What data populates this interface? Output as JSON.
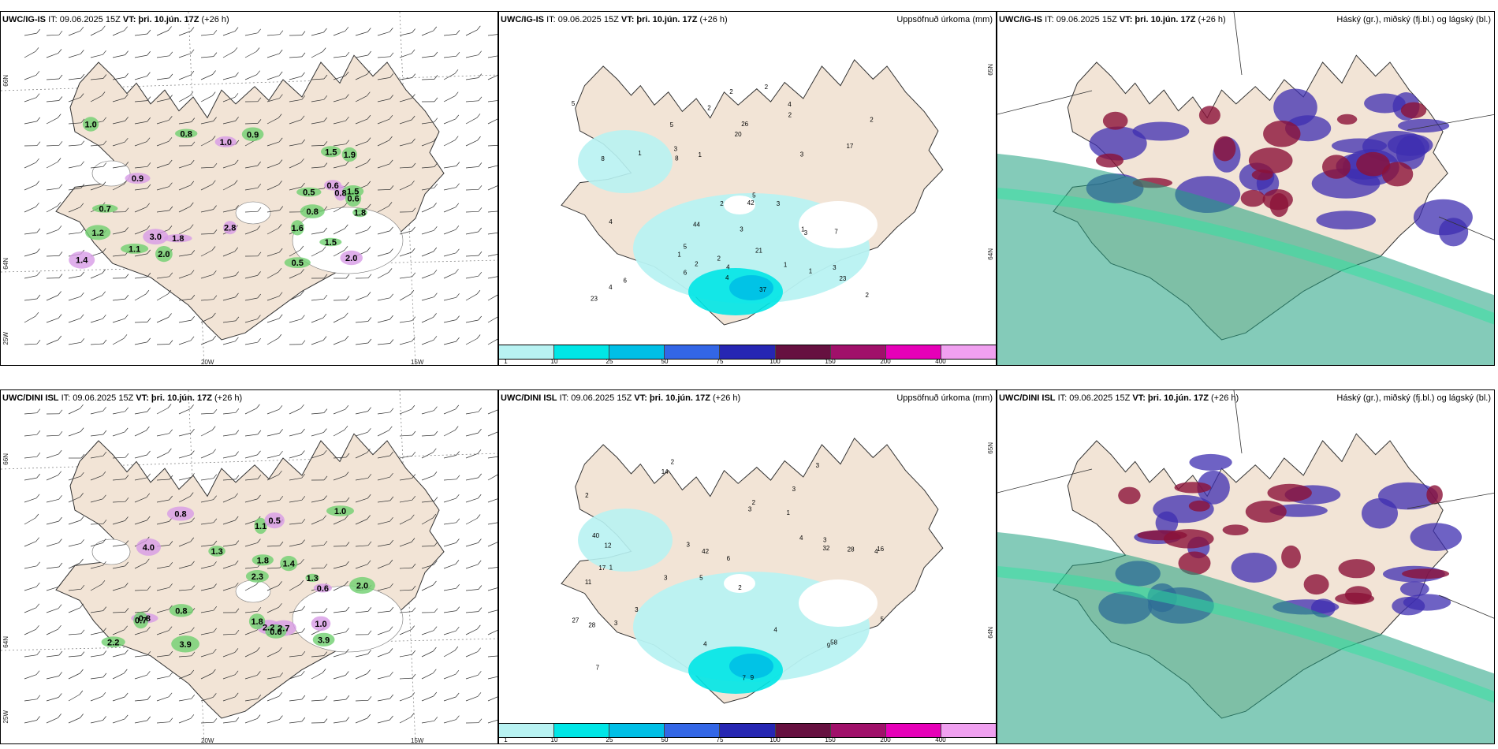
{
  "colors": {
    "land": "#f2e4d6",
    "ocean": "#ffffff",
    "coast": "#333333",
    "precip": [
      "#b8f2f2",
      "#00e6e6",
      "#00bfe6",
      "#3366e6",
      "#2626b3",
      "#661040",
      "#a0106a",
      "#e600b8",
      "#f0a0f0"
    ],
    "cloud_high": "#3d2eb0",
    "cloud_mid": "#8b1238",
    "cloud_low": "#1fa080"
  },
  "panels": [
    {
      "id": "wind-igis",
      "title_model": "UWC/IG-IS",
      "title_it": "IT: 09.06.2025 15Z",
      "title_vt": "VT: þri. 10.jún. 17Z",
      "title_lead": "(+26 h)",
      "right_label": "",
      "axis": {
        "lat_top": "66N",
        "lat_bottom": "64N",
        "lat_corner": "25W",
        "lon1": "20W",
        "lon2": "15W"
      },
      "values": [
        "0.6",
        "1.8",
        "2.0",
        "2.0",
        "0.8",
        "0.9",
        "1.0",
        "1.1",
        "1.5",
        "3.0",
        "0.7",
        "1.6",
        "0.8",
        "0.5",
        "1.5",
        "1.4",
        "0.8",
        "1.2",
        "1.8",
        "1.9",
        "1.5",
        "2.8",
        "0.5",
        "0.6",
        "0.9",
        "1.0"
      ]
    },
    {
      "id": "precip-igis",
      "title_model": "UWC/IG-IS",
      "title_it": "IT: 09.06.2025 15Z",
      "title_vt": "VT: þri. 10.jún. 17Z",
      "title_lead": "(+26 h)",
      "right_label": "Uppsöfnuð úrkoma (mm)",
      "axis": {
        "lat_top": "65N",
        "lat_bottom": "64N"
      },
      "values": [
        "4",
        "7",
        "5",
        "3",
        "2",
        "2",
        "3",
        "4",
        "1",
        "1",
        "2",
        "8",
        "2",
        "2",
        "1",
        "3",
        "1",
        "4",
        "2",
        "2",
        "5",
        "6",
        "4",
        "3",
        "3",
        "2",
        "1",
        "20",
        "17",
        "21",
        "23",
        "44",
        "26",
        "23",
        "42",
        "37",
        "4",
        "3",
        "8",
        "2",
        "1",
        "5",
        "5",
        "6"
      ],
      "colorbar": [
        "1",
        "10",
        "25",
        "50",
        "75",
        "100",
        "150",
        "200",
        "400"
      ]
    },
    {
      "id": "cloud-igis",
      "title_model": "UWC/IG-IS",
      "title_it": "IT: 09.06.2025 15Z",
      "title_vt": "VT: þri. 10.jún. 17Z",
      "title_lead": "(+26 h)",
      "right_label": "Háský (gr.), miðský (fj.bl.) og lágský (bl.)"
    },
    {
      "id": "wind-dini",
      "title_model": "UWC/DINI ISL",
      "title_it": "IT: 09.06.2025 15Z",
      "title_vt": "VT: þri. 10.jún. 17Z",
      "title_lead": "(+26 h)",
      "right_label": "",
      "axis": {
        "lat_top": "66N",
        "lat_bottom": "64N",
        "lat_corner": "25W",
        "lon1": "20W",
        "lon2": "15W"
      },
      "values": [
        "0.8",
        "2.0",
        "1.3",
        "2.2",
        "1.1",
        "1.0",
        "4.0",
        "0.8",
        "1.8",
        "2.7",
        "3.9",
        "1.8",
        "0.5",
        "1.4",
        "2.3",
        "1.0",
        "0.6",
        "0.7",
        "0.6",
        "3.9",
        "2.2",
        "0.8",
        "1.3"
      ]
    },
    {
      "id": "precip-dini",
      "title_model": "UWC/DINI ISL",
      "title_it": "IT: 09.06.2025 15Z",
      "title_vt": "VT: þri. 10.jún. 17Z",
      "title_lead": "(+26 h)",
      "right_label": "Uppsöfnuð úrkoma (mm)",
      "axis": {
        "lat_top": "65N",
        "lat_bottom": "64N"
      },
      "values": [
        "2",
        "3",
        "4",
        "5",
        "2",
        "1",
        "2",
        "1",
        "11",
        "3",
        "6",
        "7",
        "14",
        "3",
        "7",
        "9",
        "4",
        "3",
        "4",
        "3",
        "12",
        "17",
        "16",
        "28",
        "27",
        "40",
        "42",
        "32",
        "58",
        "28",
        "9",
        "2",
        "3",
        "3",
        "4",
        "5",
        "3"
      ],
      "colorbar": [
        "1",
        "10",
        "25",
        "50",
        "75",
        "100",
        "150",
        "200",
        "400"
      ]
    },
    {
      "id": "cloud-dini",
      "title_model": "UWC/DINI ISL",
      "title_it": "IT: 09.06.2025 15Z",
      "title_vt": "VT: þri. 10.jún. 17Z",
      "title_lead": "(+26 h)",
      "right_label": "Háský (gr.), miðský (fj.bl.) og lágský (bl.)"
    }
  ]
}
